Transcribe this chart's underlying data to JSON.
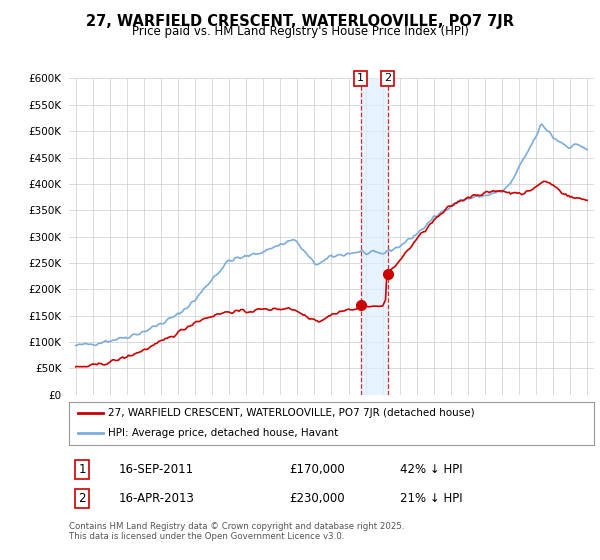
{
  "title": "27, WARFIELD CRESCENT, WATERLOOVILLE, PO7 7JR",
  "subtitle": "Price paid vs. HM Land Registry's House Price Index (HPI)",
  "hpi_color": "#7aaddc",
  "price_color": "#cc0000",
  "annotation_box_color": "#cc0000",
  "shade_color": "#ddeeff",
  "background_color": "#ffffff",
  "plot_bg_color": "#ffffff",
  "grid_color": "#cccccc",
  "ylim": [
    0,
    600000
  ],
  "ytick_values": [
    0,
    50000,
    100000,
    150000,
    200000,
    250000,
    300000,
    350000,
    400000,
    450000,
    500000,
    550000,
    600000
  ],
  "legend_entry1": "27, WARFIELD CRESCENT, WATERLOOVILLE, PO7 7JR (detached house)",
  "legend_entry2": "HPI: Average price, detached house, Havant",
  "sale1_date": "16-SEP-2011",
  "sale1_price": 170000,
  "sale1_text": "42% ↓ HPI",
  "sale2_date": "16-APR-2013",
  "sale2_price": 230000,
  "sale2_text": "21% ↓ HPI",
  "footer_text": "Contains HM Land Registry data © Crown copyright and database right 2025.\nThis data is licensed under the Open Government Licence v3.0.",
  "sale1_year": 2011.71,
  "sale2_year": 2013.29
}
